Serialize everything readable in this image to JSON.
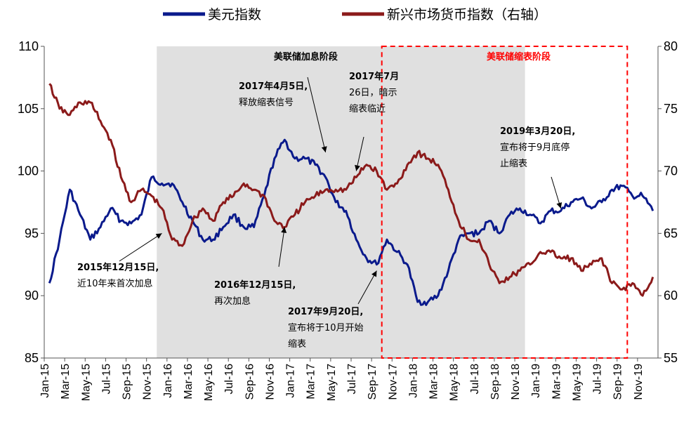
{
  "chart_data": {
    "type": "line",
    "x_range": [
      "2015-01",
      "2019-12"
    ],
    "x_ticks": [
      "Jan-15",
      "Mar-15",
      "May-15",
      "Jul-15",
      "Sep-15",
      "Nov-15",
      "Jan-16",
      "Mar-16",
      "May-16",
      "Jul-16",
      "Sep-16",
      "Nov-16",
      "Jan-17",
      "Mar-17",
      "May-17",
      "Jul-17",
      "Sep-17",
      "Nov-17",
      "Jan-18",
      "Mar-18",
      "May-18",
      "Jul-18",
      "Sep-18",
      "Nov-18",
      "Jan-19",
      "Mar-19",
      "May-19",
      "Jul-19",
      "Sep-19",
      "Nov-19"
    ],
    "y_left": {
      "range": [
        85,
        110
      ],
      "ticks": [
        "85",
        "90",
        "95",
        "100",
        "105",
        "110"
      ]
    },
    "y_right": {
      "range": [
        55,
        80
      ],
      "ticks": [
        "55",
        "60",
        "65",
        "70",
        "75",
        "80"
      ]
    },
    "legend_position": "top",
    "grid": false,
    "series": [
      {
        "name": "美元指数",
        "axis": "left",
        "color": "#0a1a8c",
        "points": [
          [
            "2015-01",
            91.0
          ],
          [
            "2015-02",
            94.5
          ],
          [
            "2015-03",
            98.5
          ],
          [
            "2015-04",
            96.5
          ],
          [
            "2015-05",
            94.5
          ],
          [
            "2015-06",
            95.5
          ],
          [
            "2015-07",
            97.0
          ],
          [
            "2015-08",
            96.0
          ],
          [
            "2015-09",
            95.8
          ],
          [
            "2015-10",
            96.5
          ],
          [
            "2015-11",
            99.5
          ],
          [
            "2015-12",
            99.0
          ],
          [
            "2016-01",
            99.0
          ],
          [
            "2016-02",
            97.5
          ],
          [
            "2016-03",
            96.0
          ],
          [
            "2016-04",
            94.5
          ],
          [
            "2016-05",
            94.5
          ],
          [
            "2016-06",
            95.5
          ],
          [
            "2016-07",
            96.5
          ],
          [
            "2016-08",
            95.5
          ],
          [
            "2016-09",
            95.5
          ],
          [
            "2016-10",
            98.0
          ],
          [
            "2016-11",
            101.0
          ],
          [
            "2016-12",
            102.5
          ],
          [
            "2017-01",
            101.0
          ],
          [
            "2017-02",
            101.0
          ],
          [
            "2017-03",
            100.5
          ],
          [
            "2017-04",
            99.5
          ],
          [
            "2017-05",
            97.5
          ],
          [
            "2017-06",
            96.8
          ],
          [
            "2017-07",
            94.5
          ],
          [
            "2017-08",
            93.0
          ],
          [
            "2017-09",
            92.5
          ],
          [
            "2017-10",
            94.5
          ],
          [
            "2017-11",
            93.5
          ],
          [
            "2017-12",
            92.5
          ],
          [
            "2018-01",
            89.5
          ],
          [
            "2018-02",
            89.5
          ],
          [
            "2018-03",
            90.0
          ],
          [
            "2018-04",
            92.0
          ],
          [
            "2018-05",
            94.5
          ],
          [
            "2018-06",
            95.0
          ],
          [
            "2018-07",
            95.0
          ],
          [
            "2018-08",
            96.0
          ],
          [
            "2018-09",
            95.0
          ],
          [
            "2018-10",
            96.5
          ],
          [
            "2018-11",
            97.0
          ],
          [
            "2018-12",
            96.5
          ],
          [
            "2019-01",
            95.8
          ],
          [
            "2019-02",
            96.8
          ],
          [
            "2019-03",
            96.8
          ],
          [
            "2019-04",
            97.5
          ],
          [
            "2019-05",
            97.8
          ],
          [
            "2019-06",
            97.0
          ],
          [
            "2019-07",
            97.5
          ],
          [
            "2019-08",
            98.5
          ],
          [
            "2019-09",
            98.8
          ],
          [
            "2019-10",
            98.0
          ],
          [
            "2019-11",
            98.0
          ],
          [
            "2019-12",
            96.8
          ]
        ]
      },
      {
        "name": "新兴市场货币指数（右轴）",
        "axis": "right",
        "color": "#8b1a1a",
        "points": [
          [
            "2015-01",
            77.0
          ],
          [
            "2015-02",
            75.0
          ],
          [
            "2015-03",
            74.5
          ],
          [
            "2015-04",
            75.5
          ],
          [
            "2015-05",
            75.5
          ],
          [
            "2015-06",
            74.0
          ],
          [
            "2015-07",
            72.5
          ],
          [
            "2015-08",
            69.5
          ],
          [
            "2015-09",
            67.5
          ],
          [
            "2015-10",
            68.5
          ],
          [
            "2015-11",
            68.0
          ],
          [
            "2015-12",
            67.0
          ],
          [
            "2016-01",
            64.5
          ],
          [
            "2016-02",
            64.0
          ],
          [
            "2016-03",
            66.0
          ],
          [
            "2016-04",
            67.0
          ],
          [
            "2016-05",
            66.0
          ],
          [
            "2016-06",
            67.5
          ],
          [
            "2016-07",
            68.0
          ],
          [
            "2016-08",
            69.0
          ],
          [
            "2016-09",
            68.5
          ],
          [
            "2016-10",
            68.0
          ],
          [
            "2016-11",
            66.0
          ],
          [
            "2016-12",
            65.5
          ],
          [
            "2017-01",
            66.5
          ],
          [
            "2017-02",
            67.5
          ],
          [
            "2017-03",
            68.0
          ],
          [
            "2017-04",
            68.5
          ],
          [
            "2017-05",
            68.5
          ],
          [
            "2017-06",
            68.5
          ],
          [
            "2017-07",
            69.5
          ],
          [
            "2017-08",
            70.5
          ],
          [
            "2017-09",
            70.0
          ],
          [
            "2017-10",
            68.5
          ],
          [
            "2017-11",
            69.0
          ],
          [
            "2017-12",
            70.5
          ],
          [
            "2018-01",
            71.5
          ],
          [
            "2018-02",
            71.0
          ],
          [
            "2018-03",
            70.5
          ],
          [
            "2018-04",
            68.5
          ],
          [
            "2018-05",
            66.0
          ],
          [
            "2018-06",
            64.5
          ],
          [
            "2018-07",
            64.5
          ],
          [
            "2018-08",
            62.5
          ],
          [
            "2018-09",
            61.0
          ],
          [
            "2018-10",
            61.5
          ],
          [
            "2018-11",
            62.0
          ],
          [
            "2018-12",
            62.5
          ],
          [
            "2019-01",
            63.5
          ],
          [
            "2019-02",
            63.5
          ],
          [
            "2019-03",
            63.0
          ],
          [
            "2019-04",
            63.0
          ],
          [
            "2019-05",
            62.0
          ],
          [
            "2019-06",
            62.5
          ],
          [
            "2019-07",
            63.0
          ],
          [
            "2019-08",
            61.0
          ],
          [
            "2019-09",
            60.5
          ],
          [
            "2019-10",
            61.0
          ],
          [
            "2019-11",
            60.0
          ],
          [
            "2019-12",
            61.5
          ]
        ]
      }
    ],
    "shaded_regions": [
      {
        "label": "美联储加息阶段",
        "from": "2015-12",
        "to": "2018-12",
        "style": "gray-fill",
        "label_color": "#000000"
      },
      {
        "label": "美联储缩表阶段",
        "from": "2017-10",
        "to": "2019-10",
        "style": "red-dashed-border",
        "label_color": "#ff0000"
      }
    ],
    "annotations": [
      {
        "lines": [
          "2015年12月15日,",
          "近10年来首次加息"
        ],
        "bold_first_line": true,
        "target": [
          "2015-12",
          95.0
        ]
      },
      {
        "lines": [
          "2016年12月15日,",
          "再次加息"
        ],
        "bold_first_line": true,
        "target": [
          "2016-12",
          95.5
        ]
      },
      {
        "lines": [
          "2017年4月5日,",
          "释放缩表信号"
        ],
        "bold_first_line": true,
        "target": [
          "2017-04",
          101.5
        ]
      },
      {
        "lines": [
          "2017年7月",
          "26日，暗示",
          "缩表临近"
        ],
        "bold_first_line": true,
        "target": [
          "2017-07",
          100.0
        ]
      },
      {
        "lines": [
          "2017年9月20日,",
          "宣布将于10月开始",
          "缩表"
        ],
        "bold_first_line": true,
        "target": [
          "2017-09",
          92.0
        ]
      },
      {
        "lines": [
          "2019年3月20日,",
          "宣布将于9月底停",
          "止缩表"
        ],
        "bold_first_line": true,
        "target": [
          "2019-03",
          97.0
        ]
      }
    ]
  }
}
